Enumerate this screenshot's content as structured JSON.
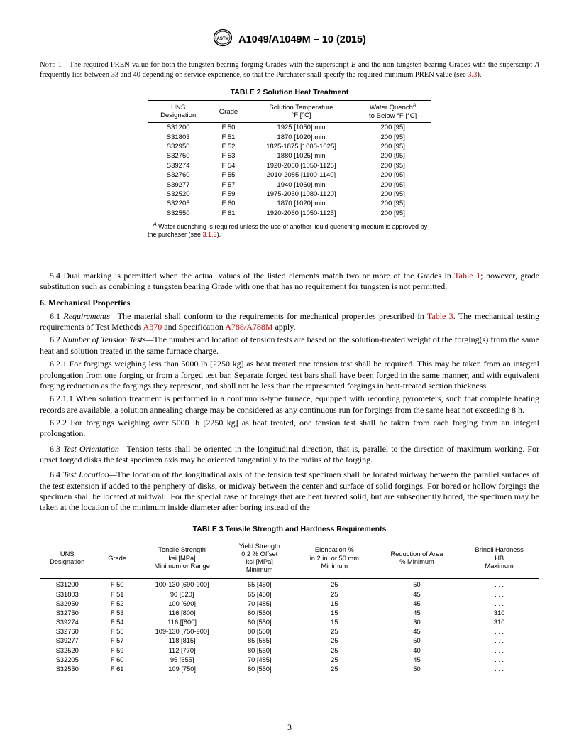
{
  "header": {
    "doc_id": "A1049/A1049M – 10 (2015)"
  },
  "note1": {
    "label": "Note 1—",
    "text_a": "The required PREN value for both the tungsten bearing forging Grades with the superscript ",
    "sup_b": "B",
    "text_b": " and the non-tungsten bearing Grades with the superscript ",
    "sup_a": "A",
    "text_c": " frequently lies between 33 and 40 depending on service experience, so that the Purchaser shall specify the required minimum PREN value (see ",
    "ref": "3.3",
    "text_d": ")."
  },
  "table2": {
    "title": "TABLE 2 Solution Heat Treatment",
    "headers": {
      "uns": "UNS\nDesignation",
      "grade": "Grade",
      "temp": "Solution Temperature\n°F [°C]",
      "quench_a": "Water Quench",
      "quench_sup": "A",
      "quench_b": "\nto Below °F [°C]"
    },
    "rows": [
      {
        "uns": "S31200",
        "grade": "F 50",
        "temp": "1925 [1050] min",
        "quench": "200 [95]"
      },
      {
        "uns": "S31803",
        "grade": "F 51",
        "temp": "1870 [1020] min",
        "quench": "200 [95]"
      },
      {
        "uns": "S32950",
        "grade": "F 52",
        "temp": "1825-1875 [1000-1025]",
        "quench": "200 [95]"
      },
      {
        "uns": "S32750",
        "grade": "F 53",
        "temp": "1880 [1025] min",
        "quench": "200 [95]"
      },
      {
        "uns": "S39274",
        "grade": "F 54",
        "temp": "1920-2060 [1050-1125]",
        "quench": "200 [95]"
      },
      {
        "uns": "S32760",
        "grade": "F 55",
        "temp": "2010-2085 [1100-1140]",
        "quench": "200 [95]"
      },
      {
        "uns": "S39277",
        "grade": "F 57",
        "temp": "1940 [1060] min",
        "quench": "200 [95]"
      },
      {
        "uns": "S32520",
        "grade": "F 59",
        "temp": "1975-2050 [1080-1120]",
        "quench": "200 [95]"
      },
      {
        "uns": "S32205",
        "grade": "F 60",
        "temp": "1870 [1020] min",
        "quench": "200 [95]"
      },
      {
        "uns": "S32550",
        "grade": "F 61",
        "temp": "1920-2060 [1050-1125]",
        "quench": "200 [95]"
      }
    ],
    "footnote_sup": "A",
    "footnote_a": " Water quenching is required unless the use of another liquid quenching medium is approved by the purchaser (see ",
    "footnote_ref": "3.1.3",
    "footnote_b": ")."
  },
  "para54_a": "5.4 Dual marking is permitted when the actual values of the listed elements match two or more of the Grades in ",
  "para54_ref": "Table 1",
  "para54_b": "; however, grade substitution such as combining a tungsten bearing Grade with one that has no requirement for tungsten is not permitted.",
  "section6": "6.  Mechanical Properties",
  "para61_lead": "6.1 ",
  "para61_head": "Requirements—",
  "para61_a": "The material shall conform to the requirements for mechanical properties prescribed in ",
  "para61_ref1": "Table 3",
  "para61_b": ". The mechanical testing requirements of Test Methods ",
  "para61_ref2": "A370",
  "para61_c": " and Specification ",
  "para61_ref3": "A788/A788M",
  "para61_d": " apply.",
  "para62_lead": "6.2 ",
  "para62_head": "Number of Tension Tests—",
  "para62_a": "The number and location of tension tests are based on the solution-treated weight of the forging(s) from the same heat and solution treated in the same furnace charge.",
  "para621": "6.2.1 For forgings weighing less than 5000 lb [2250 kg] as heat treated one tension test shall be required. This may be taken from an integral prolongation from one forging or from a forged test bar. Separate forged test bars shall have been forged in the same manner, and with equivalent forging reduction as the forgings they represent, and shall not be less than the represented forgings in heat-treated section thickness.",
  "para6211": "6.2.1.1 When solution treatment is performed in a continuous-type furnace, equipped with recording pyrometers, such that complete heating records are available, a solution annealing charge may be considered as any continuous run for forgings from the same heat not exceeding 8 h.",
  "para622": "6.2.2 For forgings weighing over 5000 lb [2250 kg] as heat treated, one tension test shall be taken from each forging from an integral prolongation.",
  "para63_lead": "6.3 ",
  "para63_head": "Test Orientation—",
  "para63_a": "Tension tests shall be oriented in the longitudinal direction, that is, parallel to the direction of maximum working. For upset forged disks the test specimen axis may be oriented tangentially to the radius of the forging.",
  "para64_lead": "6.4 ",
  "para64_head": "Test Location—",
  "para64_a": "The location of the longitudinal axis of the tension test specimen shall be located midway between the parallel surfaces of the test extension if added to the periphery of disks, or midway between the center and surface of solid forgings. For bored or hollow forgings the specimen shall be located at midwall. For the special case of forgings that are heat treated solid, but are subsequently bored, the specimen may be taken at the location of the minimum inside diameter after boring instead of the",
  "table3": {
    "title": "TABLE 3 Tensile Strength and Hardness Requirements",
    "headers": {
      "uns": "UNS\nDesignation",
      "grade": "Grade",
      "tens": "Tensile Strength\nksi [MPa]\nMinimum or Range",
      "yield": "Yield Strength\n0.2 % Offset\nksi [MPa]\nMinimum",
      "elong": "Elongation %\nin 2 in. or 50 mm\nMinimum",
      "reduct": "Reduction of Area\n% Minimum",
      "brin": "Brinell Hardness\nHB\nMaximum"
    },
    "rows": [
      {
        "uns": "S31200",
        "grade": "F 50",
        "tens": "100-130 [690-900]",
        "yield": "65 [450]",
        "elong": "25",
        "reduct": "50",
        "brin": ". . ."
      },
      {
        "uns": "S31803",
        "grade": "F 51",
        "tens": "90 [620]",
        "yield": "65 [450]",
        "elong": "25",
        "reduct": "45",
        "brin": ". . ."
      },
      {
        "uns": "S32950",
        "grade": "F 52",
        "tens": "100 [690]",
        "yield": "70 [485]",
        "elong": "15",
        "reduct": "45",
        "brin": ". . ."
      },
      {
        "uns": "S32750",
        "grade": "F 53",
        "tens": "116 [800]",
        "yield": "80 [550]",
        "elong": "15",
        "reduct": "45",
        "brin": "310"
      },
      {
        "uns": "S39274",
        "grade": "F 54",
        "tens": "116 [[800]",
        "yield": "80 [550]",
        "elong": "15",
        "reduct": "30",
        "brin": "310"
      },
      {
        "uns": "S32760",
        "grade": "F 55",
        "tens": "109-130 [750-900]",
        "yield": "80 [550]",
        "elong": "25",
        "reduct": "45",
        "brin": ". . ."
      },
      {
        "uns": "S39277",
        "grade": "F 57",
        "tens": "118 [815]",
        "yield": "85 [585]",
        "elong": "25",
        "reduct": "50",
        "brin": ". . ."
      },
      {
        "uns": "S32520",
        "grade": "F 59",
        "tens": "112 [770]",
        "yield": "80 [550]",
        "elong": "25",
        "reduct": "40",
        "brin": ". . ."
      },
      {
        "uns": "S32205",
        "grade": "F 60",
        "tens": "95 [655]",
        "yield": "70 [485]",
        "elong": "25",
        "reduct": "45",
        "brin": ". . ."
      },
      {
        "uns": "S32550",
        "grade": "F 61",
        "tens": "109 [750]",
        "yield": "80 [550]",
        "elong": "25",
        "reduct": "50",
        "brin": ". . ."
      }
    ]
  },
  "page_num": "3",
  "colors": {
    "ref": "#c00000"
  }
}
